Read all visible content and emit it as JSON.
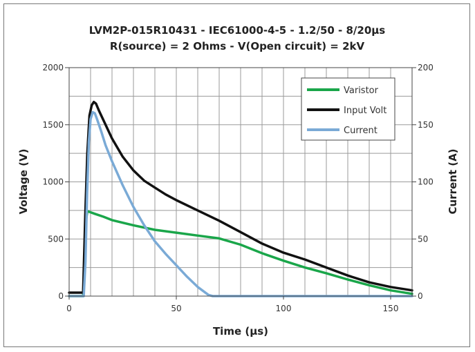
{
  "chart_data": {
    "type": "line",
    "title": "LVM2P-015R10431 - IEC61000-4-5 - 1.2/50 - 8/20µs",
    "subtitle": "R(source) = 2 Ohms - V(Open circuit) = 2kV",
    "xlabel": "Time (µs)",
    "ylabel": "Voltage (V)",
    "y2label": "Current (A)",
    "xlim": [
      0,
      160
    ],
    "ylim": [
      0,
      2000
    ],
    "y2lim": [
      0,
      200
    ],
    "xticks": [
      "0",
      "50",
      "100",
      "150"
    ],
    "yticks": [
      "0",
      "500",
      "1000",
      "1500",
      "2000"
    ],
    "y2ticks": [
      "0",
      "50",
      "100",
      "150",
      "200"
    ],
    "grid": true,
    "legend_position": "top-right",
    "series": [
      {
        "name": "Varistor",
        "axis": "left",
        "color": "#1aa64a",
        "x": [
          0,
          6.5,
          7.2,
          7.8,
          8.5,
          9,
          12,
          16,
          20,
          30,
          40,
          50,
          60,
          70,
          80,
          90,
          100,
          110,
          120,
          130,
          140,
          150,
          160
        ],
        "y": [
          0,
          0,
          300,
          650,
          745,
          740,
          720,
          695,
          665,
          620,
          580,
          555,
          530,
          505,
          450,
          375,
          310,
          250,
          200,
          145,
          95,
          50,
          20
        ]
      },
      {
        "name": "Input Volt",
        "axis": "left",
        "color": "#111111",
        "x": [
          0,
          6.5,
          7.5,
          8.5,
          9.5,
          10.5,
          11.5,
          12.5,
          14,
          16,
          18,
          20,
          25,
          30,
          35,
          40,
          45,
          50,
          60,
          70,
          80,
          90,
          100,
          110,
          120,
          130,
          140,
          150,
          160
        ],
        "y": [
          30,
          30,
          700,
          1250,
          1580,
          1670,
          1700,
          1685,
          1620,
          1540,
          1460,
          1380,
          1220,
          1100,
          1010,
          950,
          890,
          840,
          750,
          660,
          560,
          460,
          380,
          320,
          250,
          180,
          120,
          80,
          50
        ]
      },
      {
        "name": "Current",
        "axis": "right",
        "color": "#7aaad6",
        "x": [
          0,
          6.8,
          7.6,
          8.4,
          9.2,
          10,
          11,
          12,
          13,
          15,
          17,
          20,
          25,
          30,
          35,
          40,
          45,
          50,
          55,
          60,
          65,
          67,
          70,
          80,
          90,
          100,
          110,
          120,
          130,
          140,
          150,
          160
        ],
        "y": [
          0,
          0,
          30,
          90,
          135,
          155,
          161,
          160,
          155,
          144,
          132,
          118,
          97,
          78,
          62,
          48,
          37,
          27,
          17,
          8,
          1,
          0,
          0,
          0,
          0,
          0,
          0,
          0,
          0,
          0,
          0,
          0
        ]
      }
    ]
  }
}
